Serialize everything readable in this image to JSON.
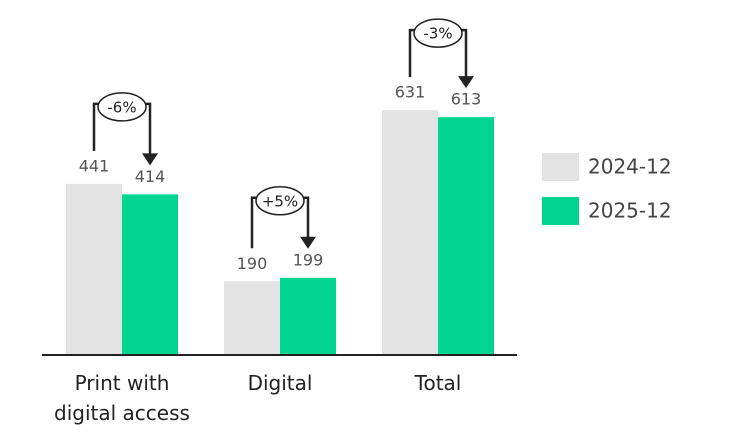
{
  "chart_data": {
    "type": "bar",
    "categories": [
      "Print with digital access",
      "Digital",
      "Total"
    ],
    "series": [
      {
        "name": "2024-12",
        "color": "#e3e3e3",
        "values": [
          441,
          190,
          631
        ]
      },
      {
        "name": "2025-12",
        "color": "#00d68f",
        "values": [
          414,
          199,
          613
        ]
      }
    ],
    "annotations": [
      "-6%",
      "+5%",
      "-3%"
    ],
    "legend": "right"
  }
}
